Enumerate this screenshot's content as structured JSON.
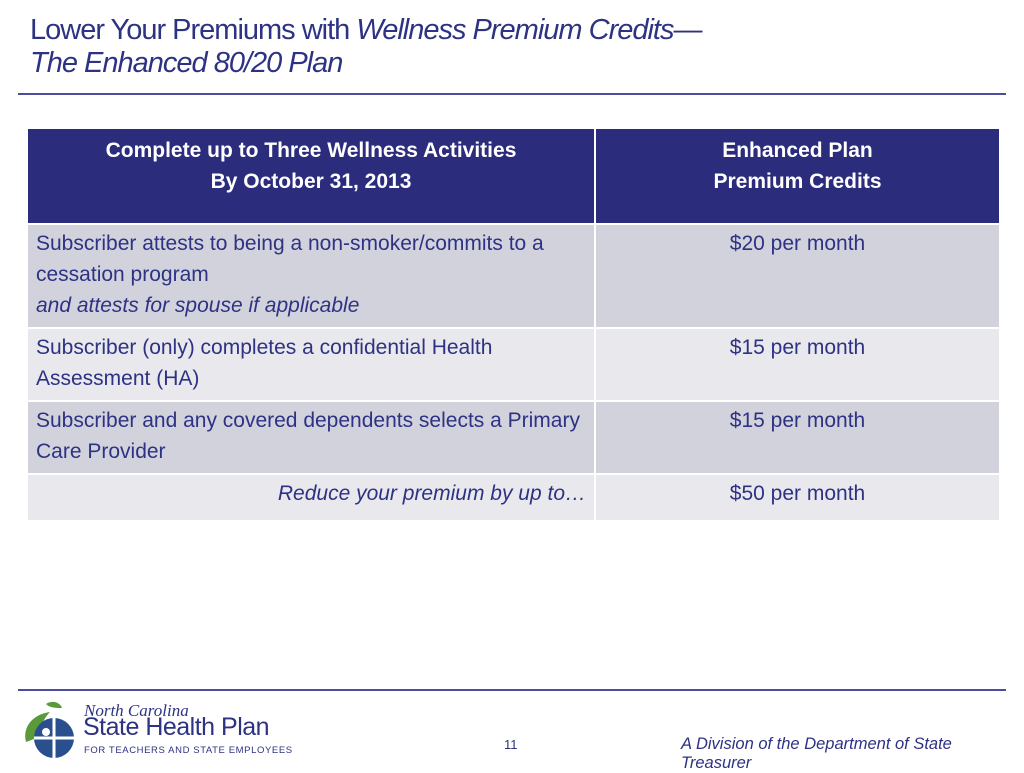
{
  "slide": {
    "title_plain": "Lower Your Premiums with ",
    "title_italic": "Wellness Premium Credits—",
    "title_line2": "The Enhanced 80/20 Plan",
    "page_number": "11"
  },
  "table": {
    "header": {
      "col1_line1": "Complete up to Three Wellness Activities",
      "col1_line2": "By October 31, 2013",
      "col2_line1": "Enhanced Plan",
      "col2_line2": "Premium Credits"
    },
    "rows": [
      {
        "activity": "Subscriber attests to being a non-smoker/commits to a cessation program",
        "activity_italic": "and attests for spouse if applicable",
        "credit": "$20 per month"
      },
      {
        "activity": "Subscriber (only) completes a confidential Health Assessment (HA)",
        "credit": "$15 per month"
      },
      {
        "activity": "Subscriber and any covered dependents selects a Primary Care Provider",
        "credit": "$15 per month"
      },
      {
        "activity": "Reduce your premium by up to…",
        "credit": "$50 per month"
      }
    ]
  },
  "footer": {
    "logo_line1": "North Carolina",
    "logo_line2": "State Health Plan",
    "logo_line3": "FOR TEACHERS AND STATE EMPLOYEES",
    "division": "A Division of the Department of State Treasurer"
  },
  "colors": {
    "brand_navy": "#2b2c7c",
    "text_navy": "#2d3283",
    "row_shade": "#d2d2dd",
    "row_light": "#e8e8ed",
    "logo_green": "#5a9a3a",
    "logo_blue": "#2a4f8f"
  }
}
